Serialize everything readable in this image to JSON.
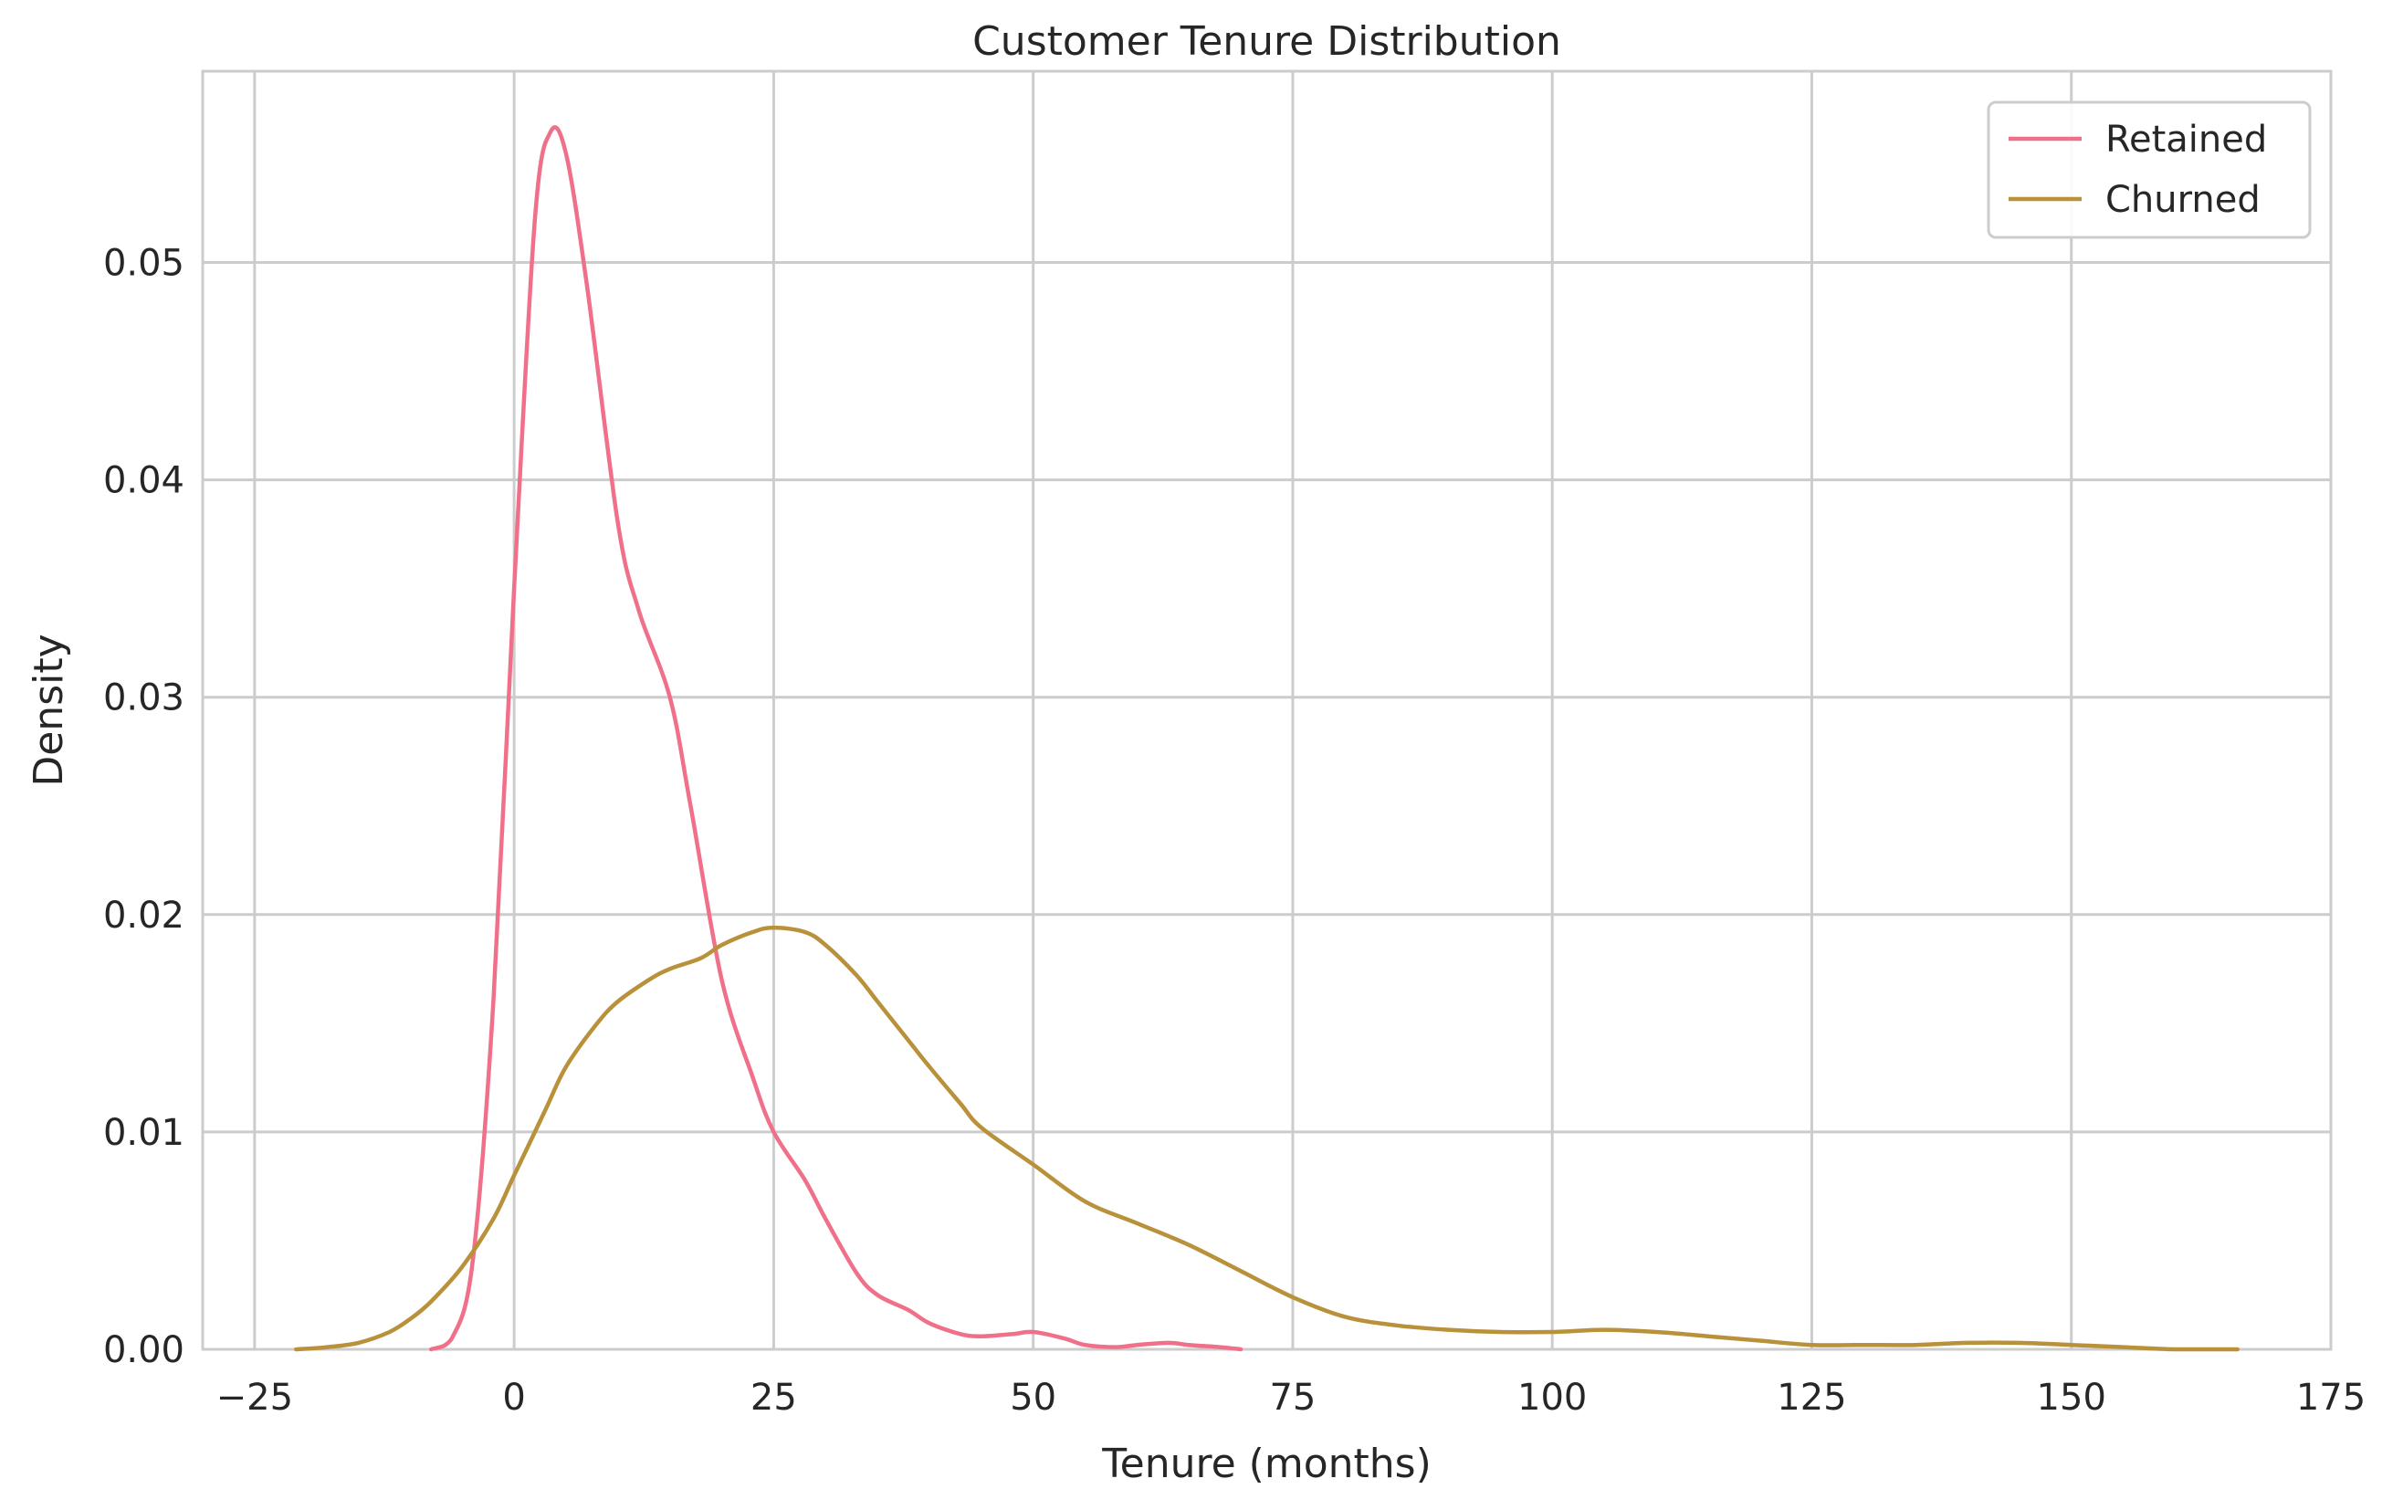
{
  "chart_data": {
    "type": "line",
    "title": "Customer Tenure Distribution",
    "xlabel": "Tenure (months)",
    "ylabel": "Density",
    "xlim": [
      -30,
      175
    ],
    "ylim": [
      0,
      0.0588
    ],
    "xticks": [
      -25,
      0,
      25,
      50,
      75,
      100,
      125,
      150,
      175
    ],
    "xtick_labels": [
      "−25",
      "0",
      "25",
      "50",
      "75",
      "100",
      "125",
      "150",
      "175"
    ],
    "yticks": [
      0.0,
      0.01,
      0.02,
      0.03,
      0.04,
      0.05
    ],
    "ytick_labels": [
      "0.00",
      "0.01",
      "0.02",
      "0.03",
      "0.04",
      "0.05"
    ],
    "grid": true,
    "legend_position": "top-right",
    "series": [
      {
        "name": "Retained",
        "color": "#f07089",
        "x": [
          -8,
          -6,
          -4,
          -2,
          0,
          2,
          3.5,
          5,
          7,
          10,
          12,
          15,
          17,
          20,
          23,
          25,
          28,
          30,
          33,
          35,
          38,
          40,
          43,
          45,
          48,
          50,
          53,
          55,
          58,
          60,
          63,
          65,
          68,
          70
        ],
        "y": [
          0.0,
          0.0005,
          0.004,
          0.016,
          0.035,
          0.052,
          0.056,
          0.055,
          0.049,
          0.038,
          0.034,
          0.03,
          0.025,
          0.017,
          0.0125,
          0.01,
          0.0078,
          0.006,
          0.0035,
          0.0025,
          0.0018,
          0.0012,
          0.0007,
          0.0006,
          0.0007,
          0.0008,
          0.0005,
          0.0002,
          0.0001,
          0.0002,
          0.0003,
          0.0002,
          0.0001,
          0.0
        ]
      },
      {
        "name": "Churned",
        "color": "#b8913a",
        "x": [
          -21,
          -18,
          -15,
          -12,
          -10,
          -8,
          -5,
          -2,
          0,
          3,
          5,
          8,
          10,
          13,
          15,
          18,
          20,
          23,
          25,
          28,
          30,
          33,
          35,
          38,
          40,
          43,
          45,
          50,
          55,
          60,
          65,
          70,
          75,
          80,
          85,
          90,
          95,
          100,
          105,
          110,
          115,
          120,
          125,
          130,
          135,
          140,
          145,
          150,
          155,
          160,
          166
        ],
        "y": [
          0.0,
          0.0001,
          0.0003,
          0.0008,
          0.0014,
          0.0022,
          0.0038,
          0.006,
          0.008,
          0.011,
          0.013,
          0.015,
          0.016,
          0.017,
          0.0175,
          0.018,
          0.0186,
          0.0192,
          0.0194,
          0.0192,
          0.0186,
          0.0172,
          0.016,
          0.0142,
          0.013,
          0.0113,
          0.0102,
          0.0085,
          0.0068,
          0.0058,
          0.0048,
          0.0036,
          0.0024,
          0.0015,
          0.0011,
          0.0009,
          0.0008,
          0.0008,
          0.0009,
          0.0008,
          0.0006,
          0.0004,
          0.0002,
          0.0002,
          0.0002,
          0.0003,
          0.0003,
          0.0002,
          0.0001,
          0.0,
          0.0
        ]
      }
    ]
  }
}
